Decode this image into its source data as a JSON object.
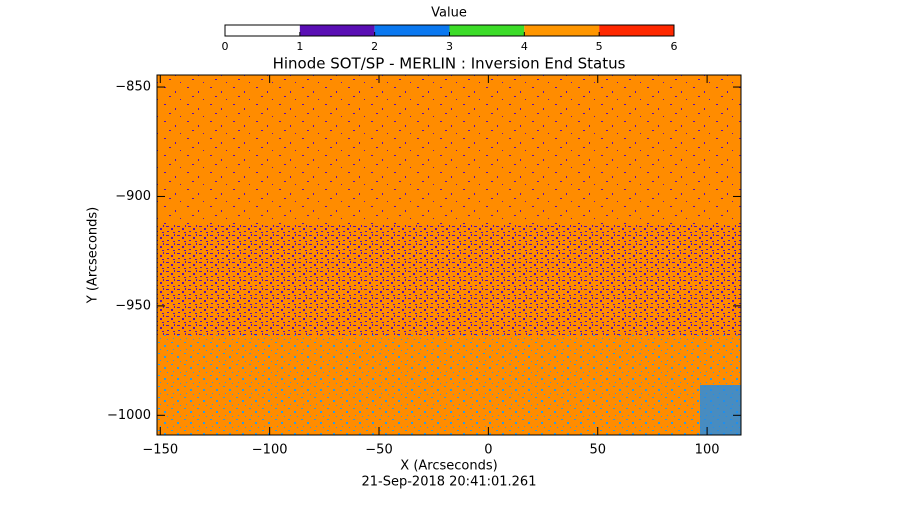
{
  "chart_data": {
    "type": "heatmap",
    "title": "Hinode SOT/SP - MERLIN : Inversion End Status",
    "xlabel": "X (Arcseconds)",
    "ylabel": "Y (Arcseconds)",
    "date": "21-Sep-2018 20:41:01.261",
    "xlim": [
      -151.5,
      115.5
    ],
    "ylim": [
      -1009,
      -844.5
    ],
    "xticks": [
      {
        "value": -150,
        "label": "−150"
      },
      {
        "value": -100,
        "label": "−100"
      },
      {
        "value": -50,
        "label": "−50"
      },
      0,
      50,
      100
    ],
    "yticks": [
      {
        "value": -850,
        "label": "−850"
      },
      {
        "value": -900,
        "label": "−900"
      },
      {
        "value": -950,
        "label": "−950"
      },
      {
        "value": -1000,
        "label": "−1000"
      }
    ],
    "colorbar": {
      "title": "Value",
      "lim": [
        0,
        6
      ],
      "ticks": [
        0,
        1,
        2,
        3,
        4,
        5,
        6
      ],
      "bins": [
        0,
        1,
        2,
        3,
        4,
        5,
        6
      ],
      "colors": [
        "#ffffff",
        "#5a0fb4",
        "#0a78f0",
        "#3cdc28",
        "#ff9600",
        "#ff2800"
      ]
    }
  }
}
